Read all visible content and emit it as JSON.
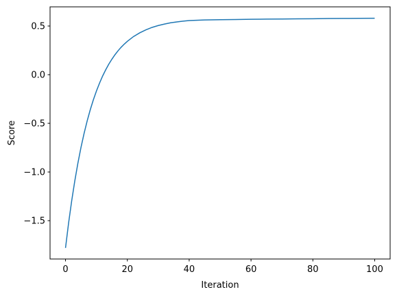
{
  "chart_data": {
    "type": "line",
    "x_label": "Iteration",
    "y_label": "Score",
    "x": [
      0,
      1,
      2,
      3,
      4,
      5,
      6,
      7,
      8,
      9,
      10,
      11,
      12,
      13,
      14,
      15,
      16,
      17,
      18,
      19,
      20,
      22,
      24,
      26,
      28,
      30,
      32,
      34,
      36,
      38,
      40,
      45,
      50,
      55,
      60,
      65,
      70,
      75,
      80,
      85,
      90,
      95,
      100
    ],
    "series": [
      {
        "color": "#1f77b4",
        "values": [
          -1.78,
          -1.524,
          -1.296,
          -1.092,
          -0.91,
          -0.748,
          -0.604,
          -0.476,
          -0.361,
          -0.259,
          -0.168,
          -0.087,
          -0.014,
          0.05,
          0.108,
          0.159,
          0.205,
          0.246,
          0.282,
          0.314,
          0.343,
          0.392,
          0.43,
          0.461,
          0.486,
          0.505,
          0.52,
          0.533,
          0.542,
          0.55,
          0.556,
          0.562,
          0.565,
          0.567,
          0.569,
          0.571,
          0.572,
          0.574,
          0.575,
          0.577,
          0.578,
          0.579,
          0.58
        ]
      }
    ],
    "xlim": [
      -5,
      105
    ],
    "xticks": [
      0,
      20,
      40,
      60,
      80,
      100
    ],
    "ylim": [
      -1.894,
      0.697
    ],
    "yticks": [
      {
        "value": -1.5,
        "label": "−1.5"
      },
      {
        "value": -1.0,
        "label": "−1.0"
      },
      {
        "value": -0.5,
        "label": "−0.5"
      },
      {
        "value": 0.0,
        "label": "0.0"
      },
      0.5
    ],
    "grid": false
  }
}
